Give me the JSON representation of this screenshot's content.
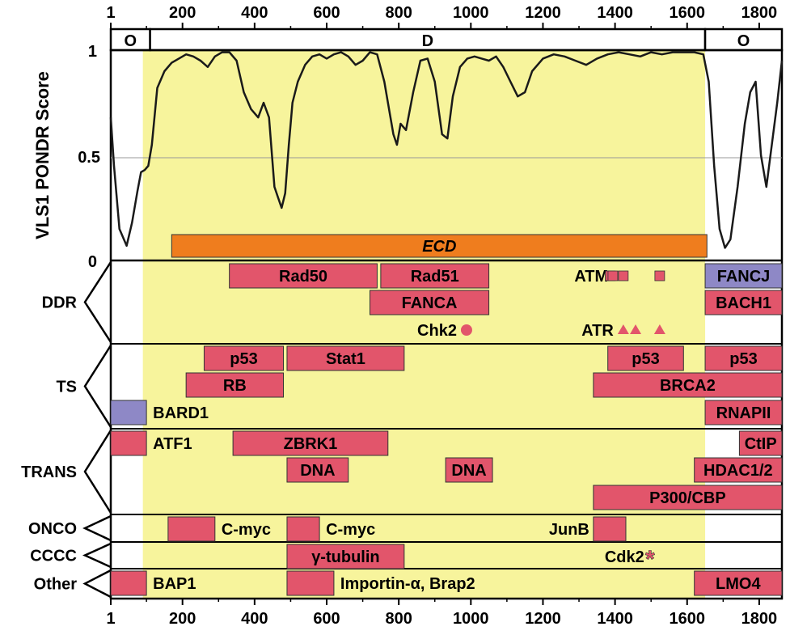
{
  "axis": {
    "x_ticks": [
      "1",
      "200",
      "400",
      "600",
      "800",
      "1000",
      "1200",
      "1400",
      "1600",
      "1800"
    ],
    "tick_values": [
      1,
      200,
      400,
      600,
      800,
      1000,
      1200,
      1400,
      1600,
      1800
    ],
    "x_range": [
      1,
      1863
    ],
    "y_ticks": [
      "0",
      "0.5",
      "1"
    ],
    "ylabel": "VLS1 PONDR Score",
    "yrange": [
      0,
      1
    ]
  },
  "colors": {
    "disorder_region": "#f7f49c",
    "ecd_bar": "#ef7d1e",
    "partner_box": "#e2556b",
    "brct_box": "#8e88c6",
    "curve": "#1a1a1a"
  },
  "order_bar": [
    {
      "label": "O",
      "start": 1,
      "end": 110
    },
    {
      "label": "D",
      "start": 110,
      "end": 1650
    },
    {
      "label": "O",
      "start": 1650,
      "end": 1863
    }
  ],
  "disordered_span": [
    90,
    1650
  ],
  "ecd": {
    "label": "ECD",
    "start": 170,
    "end": 1655
  },
  "categories": [
    "DDR",
    "TS",
    "TRANS",
    "ONCO",
    "CCCC",
    "Other"
  ],
  "interactors": [
    {
      "label": "Rad50",
      "start": 330,
      "end": 740,
      "row": 0,
      "label_inside": true
    },
    {
      "label": "Rad51",
      "start": 750,
      "end": 1050,
      "row": 0,
      "label_inside": true
    },
    {
      "label": "FANCJ",
      "start": 1650,
      "end": 1863,
      "row": 0,
      "label_inside": true,
      "brct": true
    },
    {
      "label": "FANCA",
      "start": 720,
      "end": 1050,
      "row": 1,
      "label_inside": true
    },
    {
      "label": "BACH1",
      "start": 1650,
      "end": 1863,
      "row": 1,
      "label_inside": true
    },
    {
      "label": "p53",
      "start": 260,
      "end": 480,
      "row": 3,
      "label_inside": true
    },
    {
      "label": "Stat1",
      "start": 490,
      "end": 815,
      "row": 3,
      "label_inside": true
    },
    {
      "label": "p53",
      "start": 1380,
      "end": 1590,
      "row": 3,
      "label_inside": true
    },
    {
      "label": "p53",
      "start": 1650,
      "end": 1863,
      "row": 3,
      "label_inside": true
    },
    {
      "label": "RB",
      "start": 210,
      "end": 480,
      "row": 4,
      "label_inside": true
    },
    {
      "label": "BRCA2",
      "start": 1340,
      "end": 1863,
      "row": 4,
      "label_inside": true
    },
    {
      "label": "BARD1",
      "start": 1,
      "end": 100,
      "row": 5,
      "label_inside": false,
      "brct": true
    },
    {
      "label": "RNAPII",
      "start": 1650,
      "end": 1863,
      "row": 5,
      "label_inside": true
    },
    {
      "label": "ATF1",
      "start": 1,
      "end": 100,
      "row": 6,
      "label_inside": false
    },
    {
      "label": "ZBRK1",
      "start": 340,
      "end": 770,
      "row": 6,
      "label_inside": true
    },
    {
      "label": "CtIP",
      "start": 1745,
      "end": 1863,
      "row": 6,
      "label_inside": true
    },
    {
      "label": "DNA",
      "start": 490,
      "end": 660,
      "row": 7,
      "label_inside": true
    },
    {
      "label": "DNA",
      "start": 930,
      "end": 1060,
      "row": 7,
      "label_inside": true
    },
    {
      "label": "HDAC1/2",
      "start": 1620,
      "end": 1863,
      "row": 7,
      "label_inside": true
    },
    {
      "label": "P300/CBP",
      "start": 1340,
      "end": 1863,
      "row": 8,
      "label_inside": true
    },
    {
      "label": "C-myc",
      "start": 160,
      "end": 290,
      "row": 9,
      "label_inside": false
    },
    {
      "label": "C-myc",
      "start": 490,
      "end": 580,
      "row": 9,
      "label_inside": false
    },
    {
      "label": "JunB",
      "start": 1340,
      "end": 1430,
      "row": 9,
      "label_inside": false,
      "label_left": true
    },
    {
      "label": "γ-tubulin",
      "start": 490,
      "end": 815,
      "row": 10,
      "label_inside": true
    },
    {
      "label": "BAP1",
      "start": 1,
      "end": 100,
      "row": 11,
      "label_inside": false
    },
    {
      "label": "Importin-α, Brap2",
      "start": 490,
      "end": 620,
      "row": 11,
      "label_inside": false
    },
    {
      "label": "LMO4",
      "start": 1620,
      "end": 1863,
      "row": 11,
      "label_inside": true
    }
  ],
  "site_labels": [
    {
      "label": "ATM",
      "pos": 1390,
      "row": 0
    },
    {
      "label": "Chk2",
      "pos": 970,
      "row": 2
    },
    {
      "label": "ATR",
      "pos": 1405,
      "row": 2
    },
    {
      "label": "Cdk2",
      "pos": 1490,
      "row": 10
    }
  ],
  "site_markers": [
    {
      "shape": "square",
      "positions": [
        1387,
        1394,
        1423,
        1524
      ],
      "row": 0
    },
    {
      "shape": "circle",
      "positions": [
        988
      ],
      "row": 2
    },
    {
      "shape": "triangle",
      "positions": [
        1423,
        1457,
        1524
      ],
      "row": 2
    },
    {
      "shape": "asterisk",
      "positions": [
        1497
      ],
      "row": 10
    }
  ],
  "chart_data": {
    "type": "line",
    "ylabel": "VLS1 PONDR Score",
    "ylim": [
      0,
      1
    ],
    "xlim": [
      1,
      1863
    ],
    "reference_line": 0.5,
    "series": [
      {
        "x": [
          1,
          10,
          25,
          45,
          60,
          75,
          85,
          95,
          105,
          115,
          130,
          150,
          170,
          190,
          210,
          230,
          250,
          270,
          290,
          310,
          330,
          350,
          370,
          390,
          410,
          425,
          440,
          455,
          465,
          475,
          485,
          495,
          505,
          520,
          540,
          560,
          580,
          600,
          620,
          640,
          660,
          680,
          700,
          720,
          740,
          760,
          775,
          785,
          795,
          805,
          820,
          840,
          860,
          880,
          900,
          920,
          935,
          950,
          970,
          990,
          1010,
          1030,
          1050,
          1070,
          1090,
          1110,
          1130,
          1150,
          1170,
          1200,
          1230,
          1260,
          1290,
          1320,
          1350,
          1380,
          1410,
          1440,
          1470,
          1500,
          1530,
          1560,
          1590,
          1620,
          1645,
          1660,
          1675,
          1690,
          1705,
          1720,
          1740,
          1760,
          1775,
          1790,
          1805,
          1820,
          1835,
          1850,
          1863
        ],
        "y": [
          0.68,
          0.45,
          0.15,
          0.07,
          0.18,
          0.33,
          0.42,
          0.43,
          0.45,
          0.55,
          0.82,
          0.9,
          0.94,
          0.96,
          0.98,
          0.97,
          0.95,
          0.92,
          0.97,
          0.99,
          0.99,
          0.95,
          0.8,
          0.72,
          0.68,
          0.75,
          0.68,
          0.35,
          0.3,
          0.25,
          0.32,
          0.55,
          0.75,
          0.85,
          0.93,
          0.97,
          0.98,
          0.96,
          0.98,
          0.99,
          0.97,
          0.93,
          0.95,
          0.99,
          0.98,
          0.85,
          0.7,
          0.6,
          0.55,
          0.65,
          0.62,
          0.8,
          0.95,
          0.96,
          0.85,
          0.6,
          0.58,
          0.78,
          0.92,
          0.96,
          0.97,
          0.96,
          0.95,
          0.97,
          0.92,
          0.85,
          0.78,
          0.8,
          0.9,
          0.96,
          0.98,
          0.97,
          0.95,
          0.93,
          0.96,
          0.98,
          0.99,
          0.98,
          0.97,
          0.99,
          0.98,
          0.99,
          0.99,
          0.99,
          0.98,
          0.85,
          0.45,
          0.15,
          0.06,
          0.1,
          0.35,
          0.65,
          0.8,
          0.85,
          0.5,
          0.35,
          0.55,
          0.75,
          0.95
        ]
      }
    ]
  }
}
